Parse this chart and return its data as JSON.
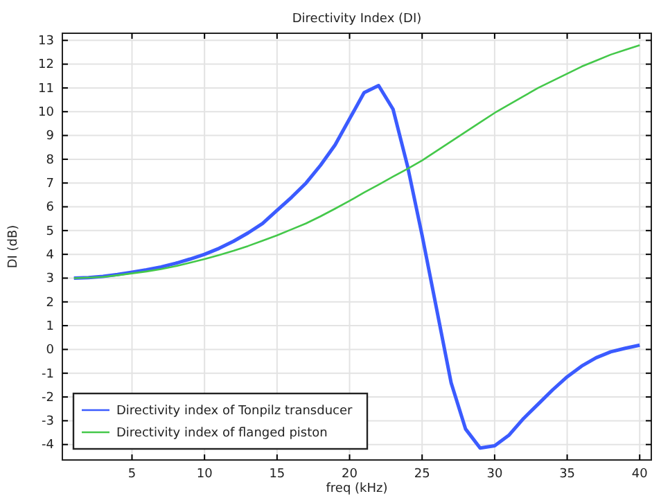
{
  "chart_data": {
    "type": "line",
    "title": "Directivity Index (DI)",
    "xlabel": "freq (kHz)",
    "ylabel": "DI (dB)",
    "x": [
      1,
      2,
      3,
      4,
      5,
      6,
      7,
      8,
      9,
      10,
      11,
      12,
      13,
      14,
      15,
      16,
      17,
      18,
      19,
      20,
      21,
      22,
      23,
      24,
      25,
      26,
      27,
      28,
      29,
      30,
      31,
      32,
      33,
      34,
      35,
      36,
      37,
      38,
      39,
      40
    ],
    "series": [
      {
        "name": "Directivity index of Tonpilz transducer",
        "color": "#3b5bff",
        "values": [
          3.0,
          3.02,
          3.07,
          3.15,
          3.25,
          3.35,
          3.47,
          3.62,
          3.8,
          4.0,
          4.25,
          4.55,
          4.9,
          5.3,
          5.85,
          6.4,
          7.0,
          7.75,
          8.6,
          9.7,
          10.8,
          11.1,
          10.1,
          7.7,
          4.8,
          1.7,
          -1.4,
          -3.35,
          -4.15,
          -4.05,
          -3.6,
          -2.9,
          -2.3,
          -1.7,
          -1.15,
          -0.7,
          -0.35,
          -0.1,
          0.05,
          0.18
        ]
      },
      {
        "name": "Directivity index of flanged piston",
        "color": "#44c84a",
        "values": [
          3.0,
          3.02,
          3.05,
          3.12,
          3.2,
          3.28,
          3.38,
          3.5,
          3.65,
          3.8,
          3.97,
          4.15,
          4.35,
          4.57,
          4.8,
          5.05,
          5.3,
          5.6,
          5.92,
          6.25,
          6.6,
          6.93,
          7.27,
          7.6,
          7.95,
          8.35,
          8.75,
          9.15,
          9.55,
          9.95,
          10.3,
          10.65,
          11.0,
          11.3,
          11.6,
          11.9,
          12.15,
          12.4,
          12.6,
          12.8
        ]
      }
    ],
    "xlim": [
      0.2,
      40.8
    ],
    "ylim": [
      -4.65,
      13.3
    ],
    "xticks": [
      5,
      10,
      15,
      20,
      25,
      30,
      35,
      40
    ],
    "yticks": [
      -4,
      -3,
      -2,
      -1,
      0,
      1,
      2,
      3,
      4,
      5,
      6,
      7,
      8,
      9,
      10,
      11,
      12,
      13
    ],
    "grid": true,
    "legend": "bottom left",
    "marker": "none",
    "line_style": "solid"
  }
}
